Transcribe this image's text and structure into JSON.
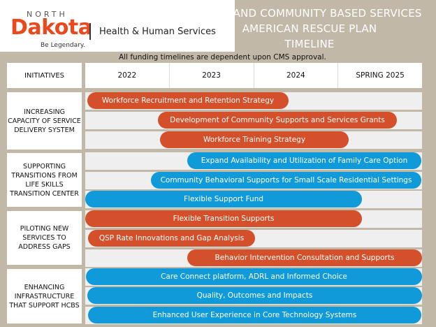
{
  "logo": {
    "north": "NORTH",
    "dakota": "Dakota",
    "tagline": "Be Legendary.",
    "agency": "Health & Human Services"
  },
  "title_lines": [
    "HOME AND COMMUNITY BASED SERVICES",
    "AMERICAN RESCUE PLAN",
    "TIMELINE"
  ],
  "note": "All funding timelines are dependent upon CMS approval.",
  "header": {
    "initiatives": "INITIATIVES",
    "years": [
      "2022",
      "2023",
      "2024",
      "SPRING 2025"
    ]
  },
  "colors": {
    "orange": "#d4502a",
    "blue": "#109ad9",
    "background": "#c2b8a8"
  },
  "groups": [
    {
      "label": "INCREASING CAPACITY OF SERVICE DELIVERY SYSTEM",
      "bars": [
        {
          "label": "Workforce Recruitment and Retention Strategy",
          "color": "orange"
        },
        {
          "label": "Development of Community Supports and Services Grants",
          "color": "orange"
        },
        {
          "label": "Workforce Training Strategy",
          "color": "orange"
        }
      ]
    },
    {
      "label": "SUPPORTING TRANSITIONS FROM LIFE SKILLS TRANSITION CENTER",
      "bars": [
        {
          "label": "Expand Availability and Utilization of Family Care Option",
          "color": "blue"
        },
        {
          "label": "Community Behavioral Supports for Small Scale Residential Settings",
          "color": "blue"
        },
        {
          "label": "Flexible Support Fund",
          "color": "blue"
        }
      ]
    },
    {
      "label": "PILOTING NEW SERVICES TO ADDRESS GAPS",
      "bars": [
        {
          "label": "Flexible Transition Supports",
          "color": "orange"
        },
        {
          "label": "QSP Rate Innovations and Gap Analysis",
          "color": "orange"
        },
        {
          "label": "Behavior Intervention Consultation and Supports",
          "color": "orange"
        }
      ]
    },
    {
      "label": "ENHANCING INFRASTRUCTURE THAT SUPPORT HCBS",
      "bars": [
        {
          "label": "Care Connect platform, ADRL and Informed Choice",
          "color": "blue"
        },
        {
          "label": "Quality, Outcomes and Impacts",
          "color": "blue"
        },
        {
          "label": "Enhanced User Experience in Core Technology Systems",
          "color": "blue"
        }
      ]
    }
  ]
}
